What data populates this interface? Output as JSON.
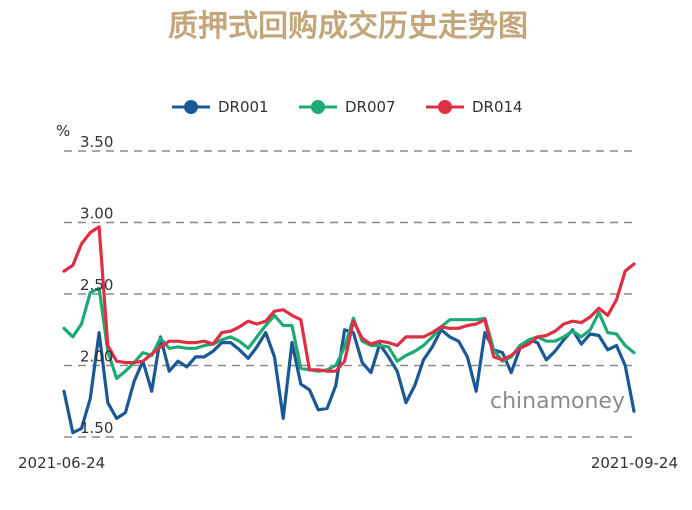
{
  "title": "质押式回购成交历史走势图",
  "watermark": "chinamoney",
  "colors": {
    "title": "#c4a67c",
    "DR001": "#1a5896",
    "DR007": "#20aa73",
    "DR014": "#de2f45"
  },
  "chart_data": {
    "type": "line",
    "title": "质押式回购成交历史走势图",
    "ylabel": "%",
    "ylim": [
      1.5,
      3.5
    ],
    "yticks": [
      "3.50",
      "3.00",
      "2.50",
      "2.00",
      "1.50"
    ],
    "x_start": "2021-06-24",
    "x_end": "2021-09-24",
    "grid": true,
    "legend_position": "top",
    "series": [
      {
        "name": "DR001",
        "values": [
          1.82,
          1.53,
          1.56,
          1.77,
          2.23,
          1.74,
          1.63,
          1.67,
          1.89,
          2.03,
          1.82,
          2.2,
          1.96,
          2.03,
          1.99,
          2.06,
          2.06,
          2.1,
          2.16,
          2.16,
          2.11,
          2.05,
          2.13,
          2.23,
          2.06,
          1.63,
          2.16,
          1.87,
          1.83,
          1.69,
          1.7,
          1.86,
          2.25,
          2.23,
          2.02,
          1.95,
          2.15,
          2.06,
          1.96,
          1.74,
          1.86,
          2.04,
          2.13,
          2.25,
          2.2,
          2.17,
          2.06,
          1.82,
          2.23,
          2.11,
          2.09,
          1.95,
          2.12,
          2.18,
          2.16,
          2.04,
          2.1,
          2.18,
          2.25,
          2.15,
          2.22,
          2.21,
          2.11,
          2.14,
          2.0,
          1.68
        ]
      },
      {
        "name": "DR007",
        "values": [
          2.26,
          2.2,
          2.29,
          2.51,
          2.54,
          2.1,
          1.91,
          1.96,
          2.02,
          2.09,
          2.07,
          2.19,
          2.12,
          2.13,
          2.12,
          2.12,
          2.14,
          2.15,
          2.18,
          2.2,
          2.17,
          2.12,
          2.2,
          2.28,
          2.35,
          2.28,
          2.28,
          1.98,
          1.97,
          1.96,
          1.97,
          2.0,
          2.13,
          2.33,
          2.17,
          2.14,
          2.14,
          2.13,
          2.03,
          2.07,
          2.1,
          2.14,
          2.2,
          2.27,
          2.32,
          2.32,
          2.32,
          2.32,
          2.33,
          2.11,
          2.03,
          2.06,
          2.14,
          2.18,
          2.2,
          2.17,
          2.17,
          2.2,
          2.24,
          2.2,
          2.25,
          2.37,
          2.23,
          2.22,
          2.14,
          2.09
        ]
      },
      {
        "name": "DR014",
        "values": [
          2.66,
          2.7,
          2.85,
          2.93,
          2.97,
          2.14,
          2.03,
          2.02,
          2.02,
          2.03,
          2.08,
          2.13,
          2.17,
          2.17,
          2.16,
          2.16,
          2.17,
          2.15,
          2.23,
          2.24,
          2.27,
          2.31,
          2.29,
          2.31,
          2.38,
          2.39,
          2.35,
          2.32,
          1.97,
          1.97,
          1.96,
          1.96,
          2.03,
          2.31,
          2.19,
          2.15,
          2.17,
          2.16,
          2.14,
          2.2,
          2.2,
          2.2,
          2.23,
          2.27,
          2.26,
          2.26,
          2.28,
          2.29,
          2.32,
          2.06,
          2.04,
          2.07,
          2.12,
          2.15,
          2.2,
          2.21,
          2.24,
          2.29,
          2.31,
          2.3,
          2.34,
          2.4,
          2.35,
          2.46,
          2.66,
          2.71
        ]
      }
    ]
  }
}
